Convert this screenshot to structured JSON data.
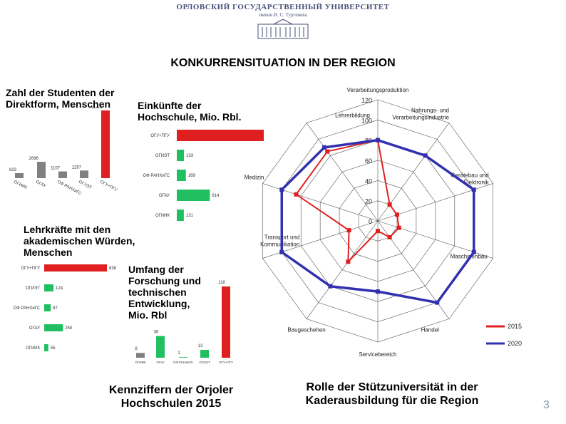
{
  "header": {
    "university": "ОРЛОВСКИЙ ГОСУДАРСТВЕННЫЙ УНИВЕРСИТЕТ",
    "subtitle": "имени И. С. Тургенева"
  },
  "slide_title": "KONKURRENSITUATION IN DER REGION",
  "footer_left": "Kennziffern der Orjoler Hochschulen 2015",
  "footer_right": "Rolle der Stützuniversität in der Kaderausbildung für die Region",
  "page_number": "3",
  "colors": {
    "bar": "#e02020",
    "bar_green": "#20c060",
    "bar_gray": "#808080",
    "radar_2015": "#e02020",
    "radar_2020": "#3030b0",
    "header": "#4a4f7a"
  },
  "chart_data": [
    {
      "id": "students",
      "type": "bar",
      "title": "Zahl der Studenten der Direktform, Menschen",
      "categories": [
        "ОГИИК",
        "ОГАУ",
        "ОФ РАНХиГС",
        "ОГУЭТ",
        "ОГУ+ПГУ"
      ],
      "values": [
        823,
        2696,
        1107,
        1257,
        11169
      ]
    },
    {
      "id": "income",
      "type": "bar",
      "orientation": "horizontal",
      "title": "Einkünfte der Hochschule, Mio. Rbl.",
      "categories": [
        "ОГУ+ПГУ",
        "ОГИЭТ",
        "ОФ РАНХиГС",
        "ОГАУ",
        "ОГИИК"
      ],
      "values": [
        1722,
        133,
        169,
        614,
        131
      ]
    },
    {
      "id": "teachers",
      "type": "bar",
      "orientation": "horizontal",
      "title": "Lehrkräfte mit den akademischen Würden, Menschen",
      "categories": [
        "ОГУ+ПГУ",
        "ОГИЭТ",
        "ОФ РАНХиГС",
        "ОГАУ",
        "ОГИИК"
      ],
      "values": [
        838,
        124,
        87,
        250,
        55
      ]
    },
    {
      "id": "research",
      "type": "bar",
      "title": "Umfang der Forschung und technischen Entwicklung, Mio. Rbl",
      "categories": [
        "ОГИИК",
        "ОГАУ",
        "ОФ РАНХиГС",
        "ОГИЭТ",
        "ОГУ+ПГУ"
      ],
      "values": [
        8,
        36,
        1,
        13,
        118
      ]
    },
    {
      "id": "radar",
      "type": "radar",
      "axes": [
        "Verarbeitungsproduktion",
        "Nahrungs- und Verarbeitungsindustrie",
        "Gerätebau und Elektronik",
        "Maschinenbau",
        "Handel",
        "Servicebereich",
        "Baugeschehen",
        "Transport und Kommunikation",
        "Medizin",
        "Lehrerbildung"
      ],
      "ticks": [
        "0",
        "20",
        "40",
        "60",
        "80",
        "100",
        "120"
      ],
      "range": [
        0,
        120
      ],
      "series": [
        {
          "name": "2015",
          "values": [
            80,
            20,
            20,
            22,
            20,
            10,
            50,
            30,
            85,
            85
          ]
        },
        {
          "name": "2020",
          "values": [
            80,
            80,
            100,
            100,
            100,
            70,
            80,
            100,
            100,
            90
          ]
        }
      ],
      "legend": "bottom-right"
    }
  ]
}
